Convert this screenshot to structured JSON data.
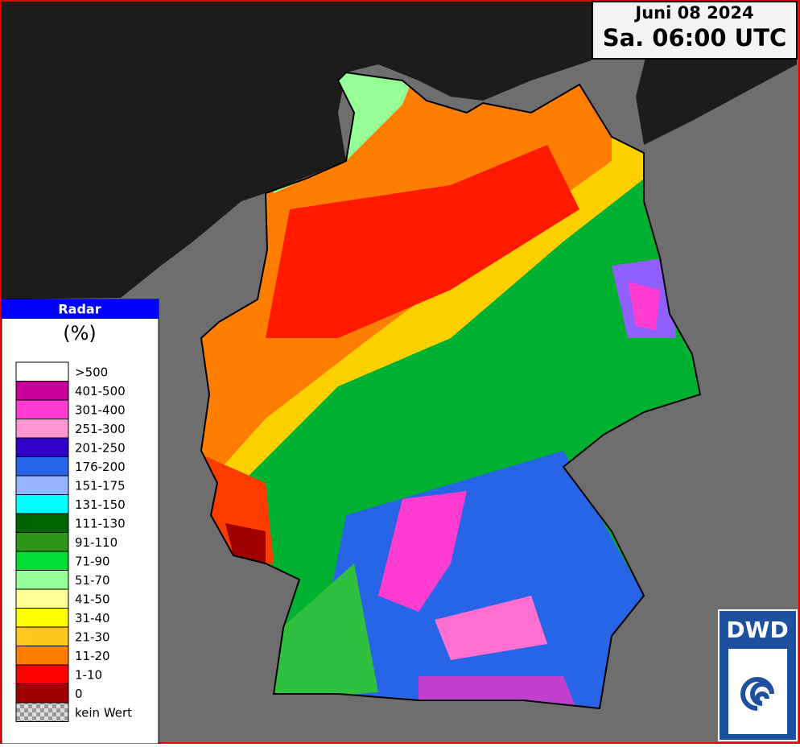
{
  "header": {
    "date": "Juni 08 2024",
    "time": "Sa. 06:00 UTC"
  },
  "legend": {
    "title": "Radar",
    "unit": "(%)",
    "items": [
      {
        "label": ">500",
        "color": "#ffffff"
      },
      {
        "label": "401-500",
        "color": "#c8009a"
      },
      {
        "label": "301-400",
        "color": "#ff3ccf"
      },
      {
        "label": "251-300",
        "color": "#ff96d2"
      },
      {
        "label": "201-250",
        "color": "#3300c8"
      },
      {
        "label": "176-200",
        "color": "#2864e6"
      },
      {
        "label": "151-175",
        "color": "#96b4ff"
      },
      {
        "label": "131-150",
        "color": "#00ffff"
      },
      {
        "label": "111-130",
        "color": "#006400"
      },
      {
        "label": "91-110",
        "color": "#2d9619"
      },
      {
        "label": "71-90",
        "color": "#00dc32"
      },
      {
        "label": "51-70",
        "color": "#96ff96"
      },
      {
        "label": "41-50",
        "color": "#ffff96"
      },
      {
        "label": "31-40",
        "color": "#ffff00"
      },
      {
        "label": "21-30",
        "color": "#ffc81e"
      },
      {
        "label": "11-20",
        "color": "#ff7d00"
      },
      {
        "label": "1-10",
        "color": "#ff0000"
      },
      {
        "label": "0",
        "color": "#a00000"
      }
    ],
    "no_value": "kein Wert"
  },
  "logo": "DWD"
}
